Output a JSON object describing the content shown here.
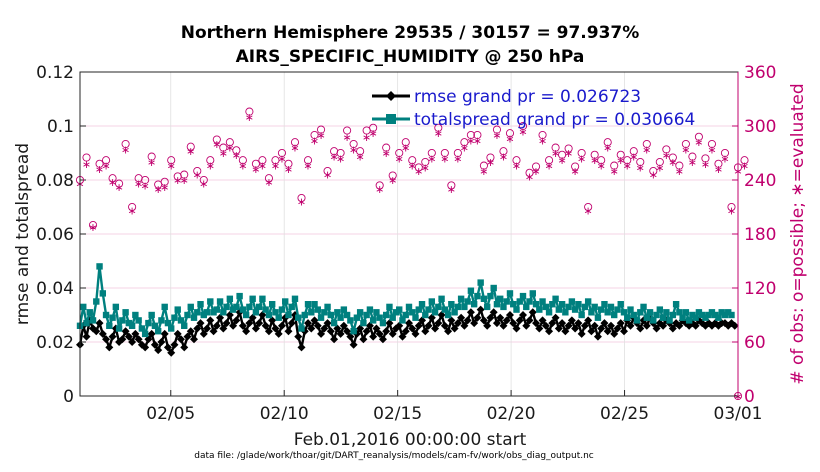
{
  "chart_data": {
    "type": "line",
    "title_line1": "Northern Hemisphere 29535 / 30157 = 97.937%",
    "title_line2": "AIRS_SPECIFIC_HUMIDITY @ 250 hPa",
    "ylabel": "rmse and totalspread",
    "y2label": "# of obs: o=possible; ∗=evaluated",
    "xlabel": "Feb.01,2016 00:00:00 start",
    "footnote": "data file: /glade/work/thoar/git/DART_reanalysis/models/cam-fv/work/obs_diag_output.nc",
    "ylim": [
      0,
      0.12
    ],
    "y2lim": [
      0,
      360
    ],
    "xlim": [
      1,
      30
    ],
    "yticks": [
      "0",
      "0.02",
      "0.04",
      "0.06",
      "0.08",
      "0.1",
      "0.12"
    ],
    "y2ticks": [
      "0",
      "60",
      "120",
      "180",
      "240",
      "300",
      "360"
    ],
    "xticks": [
      {
        "x": 5,
        "label": "02/05"
      },
      {
        "x": 10,
        "label": "02/10"
      },
      {
        "x": 15,
        "label": "02/15"
      },
      {
        "x": 20,
        "label": "02/20"
      },
      {
        "x": 25,
        "label": "02/25"
      },
      {
        "x": 30,
        "label": "03/01"
      }
    ],
    "grid": true,
    "legend_position": "top-right",
    "colors": {
      "rmse": "#000000",
      "spread": "#00807f",
      "obs": "#c0006e"
    },
    "series": [
      {
        "name": "rmse grand pr = 0.026723",
        "values": [
          0.019,
          0.026,
          0.022,
          0.028,
          0.025,
          0.024,
          0.027,
          0.023,
          0.021,
          0.018,
          0.022,
          0.025,
          0.02,
          0.021,
          0.024,
          0.022,
          0.02,
          0.023,
          0.021,
          0.019,
          0.018,
          0.021,
          0.023,
          0.019,
          0.017,
          0.02,
          0.023,
          0.018,
          0.016,
          0.019,
          0.023,
          0.021,
          0.018,
          0.022,
          0.024,
          0.021,
          0.025,
          0.027,
          0.023,
          0.025,
          0.028,
          0.024,
          0.026,
          0.029,
          0.025,
          0.027,
          0.03,
          0.026,
          0.028,
          0.031,
          0.026,
          0.024,
          0.027,
          0.029,
          0.025,
          0.027,
          0.03,
          0.026,
          0.024,
          0.028,
          0.025,
          0.023,
          0.026,
          0.029,
          0.024,
          0.027,
          0.03,
          0.022,
          0.018,
          0.024,
          0.027,
          0.025,
          0.028,
          0.026,
          0.023,
          0.025,
          0.027,
          0.024,
          0.021,
          0.025,
          0.023,
          0.026,
          0.024,
          0.022,
          0.019,
          0.023,
          0.025,
          0.021,
          0.024,
          0.026,
          0.022,
          0.025,
          0.023,
          0.021,
          0.024,
          0.027,
          0.023,
          0.025,
          0.026,
          0.022,
          0.024,
          0.027,
          0.025,
          0.023,
          0.026,
          0.028,
          0.024,
          0.026,
          0.029,
          0.025,
          0.027,
          0.03,
          0.026,
          0.024,
          0.028,
          0.025,
          0.027,
          0.029,
          0.026,
          0.028,
          0.031,
          0.027,
          0.029,
          0.032,
          0.028,
          0.026,
          0.029,
          0.031,
          0.027,
          0.029,
          0.026,
          0.028,
          0.03,
          0.027,
          0.025,
          0.028,
          0.03,
          0.026,
          0.028,
          0.031,
          0.027,
          0.025,
          0.028,
          0.026,
          0.024,
          0.027,
          0.029,
          0.025,
          0.027,
          0.024,
          0.026,
          0.028,
          0.025,
          0.027,
          0.023,
          0.026,
          0.028,
          0.024,
          0.026,
          0.022,
          0.025,
          0.027,
          0.024,
          0.026,
          0.023,
          0.025,
          0.027,
          0.024,
          0.028,
          0.026,
          0.029,
          0.027,
          0.025,
          0.028,
          0.026,
          0.029,
          0.027,
          0.025,
          0.027,
          0.026,
          0.028,
          0.027,
          0.025,
          0.027,
          0.026,
          0.028,
          0.027,
          0.026,
          0.027,
          0.026,
          0.028,
          0.027,
          0.026,
          0.027,
          0.026,
          0.027,
          0.026,
          0.027,
          0.027,
          0.026,
          0.027,
          0.026
        ]
      },
      {
        "name": "totalspread grand pr = 0.030664",
        "values": [
          0.026,
          0.033,
          0.027,
          0.031,
          0.028,
          0.035,
          0.048,
          0.038,
          0.03,
          0.026,
          0.029,
          0.033,
          0.025,
          0.028,
          0.031,
          0.027,
          0.026,
          0.03,
          0.028,
          0.025,
          0.023,
          0.027,
          0.03,
          0.026,
          0.024,
          0.028,
          0.033,
          0.027,
          0.025,
          0.029,
          0.032,
          0.028,
          0.026,
          0.03,
          0.033,
          0.029,
          0.031,
          0.034,
          0.03,
          0.031,
          0.035,
          0.031,
          0.032,
          0.035,
          0.031,
          0.033,
          0.036,
          0.032,
          0.033,
          0.037,
          0.032,
          0.03,
          0.033,
          0.036,
          0.031,
          0.033,
          0.036,
          0.032,
          0.03,
          0.034,
          0.031,
          0.029,
          0.032,
          0.035,
          0.03,
          0.033,
          0.036,
          0.029,
          0.025,
          0.03,
          0.034,
          0.031,
          0.034,
          0.032,
          0.029,
          0.031,
          0.033,
          0.03,
          0.027,
          0.031,
          0.029,
          0.032,
          0.03,
          0.028,
          0.024,
          0.029,
          0.031,
          0.027,
          0.03,
          0.032,
          0.028,
          0.031,
          0.029,
          0.027,
          0.03,
          0.033,
          0.029,
          0.031,
          0.032,
          0.028,
          0.03,
          0.033,
          0.031,
          0.029,
          0.032,
          0.034,
          0.03,
          0.032,
          0.035,
          0.031,
          0.033,
          0.036,
          0.032,
          0.03,
          0.034,
          0.031,
          0.033,
          0.036,
          0.033,
          0.035,
          0.039,
          0.034,
          0.037,
          0.042,
          0.036,
          0.033,
          0.037,
          0.04,
          0.034,
          0.036,
          0.033,
          0.035,
          0.038,
          0.034,
          0.032,
          0.035,
          0.037,
          0.033,
          0.035,
          0.038,
          0.034,
          0.032,
          0.035,
          0.033,
          0.031,
          0.034,
          0.036,
          0.032,
          0.034,
          0.031,
          0.033,
          0.035,
          0.032,
          0.034,
          0.03,
          0.033,
          0.035,
          0.031,
          0.033,
          0.029,
          0.032,
          0.034,
          0.031,
          0.033,
          0.03,
          0.032,
          0.034,
          0.031,
          0.029,
          0.032,
          0.03,
          0.028,
          0.031,
          0.033,
          0.029,
          0.031,
          0.028,
          0.03,
          0.032,
          0.029,
          0.031,
          0.028,
          0.03,
          0.034,
          0.031,
          0.029,
          0.031,
          0.028,
          0.03,
          0.029,
          0.031,
          0.03,
          0.029,
          0.03,
          0.031,
          0.03,
          0.029,
          0.031,
          0.03,
          0.031,
          0.03
        ]
      },
      {
        "name": "possible",
        "axis": "right",
        "values": [
          240,
          238,
          265,
          262,
          190,
          262,
          258,
          236,
          262,
          258,
          242,
          230,
          236,
          260,
          280,
          212,
          210,
          200,
          242,
          248,
          240,
          265,
          266,
          210,
          235,
          240,
          238,
          190,
          262,
          258,
          244,
          248,
          246,
          272,
          277,
          236,
          250,
          270,
          240,
          280,
          262,
          276,
          285,
          244,
          276,
          262,
          282,
          262,
          273,
          245,
          262,
          255,
          316,
          308,
          258,
          262,
          262,
          248,
          242,
          300,
          262,
          256,
          270,
          290,
          258,
          276,
          282,
          290,
          220,
          262,
          262,
          260,
          290,
          278,
          296,
          248,
          250,
          208,
          272,
          262,
          270,
          287,
          295,
          262,
          280,
          260,
          272,
          258,
          295,
          294,
          298,
          285,
          234,
          242,
          276,
          238,
          245,
          248,
          270,
          247,
          282,
          274,
          262,
          264,
          254,
          292,
          260,
          290,
          270,
          265,
          298,
          250,
          270,
          272,
          234,
          262,
          270,
          256,
          282,
          244,
          290,
          262,
          290,
          272,
          256,
          278,
          265,
          265,
          296,
          248,
          272,
          274,
          292,
          274,
          262,
          243,
          300,
          262,
          248,
          240,
          255,
          262,
          290,
          258,
          262,
          244,
          276,
          260,
          268,
          248,
          275,
          290,
          255,
          248,
          270,
          272,
          210,
          262,
          268,
          280,
          262,
          252,
          282,
          270,
          256,
          264,
          268,
          290,
          262,
          250,
          272,
          287,
          260,
          232,
          280,
          280,
          250,
          238,
          260,
          254,
          274,
          265,
          265,
          248,
          256,
          262,
          280,
          270,
          266,
          275,
          288,
          255,
          264,
          240,
          280,
          265,
          258,
          240,
          270,
          255,
          210,
          250,
          254,
          262,
          262,
          252
        ]
      },
      {
        "name": "evaluated",
        "axis": "right",
        "values": [
          236,
          234,
          258,
          256,
          188,
          255,
          252,
          232,
          256,
          252,
          238,
          226,
          232,
          254,
          274,
          208,
          206,
          196,
          236,
          242,
          234,
          258,
          260,
          206,
          230,
          234,
          232,
          188,
          256,
          252,
          240,
          242,
          240,
          266,
          272,
          232,
          246,
          264,
          236,
          274,
          256,
          270,
          280,
          238,
          270,
          256,
          276,
          256,
          268,
          240,
          256,
          250,
          310,
          300,
          252,
          256,
          256,
          244,
          238,
          294,
          256,
          250,
          264,
          284,
          252,
          270,
          276,
          284,
          216,
          256,
          256,
          254,
          284,
          272,
          290,
          244,
          246,
          204,
          266,
          256,
          264,
          280,
          288,
          256,
          274,
          254,
          266,
          252,
          288,
          288,
          292,
          280,
          230,
          238,
          270,
          234,
          240,
          244,
          264,
          242,
          276,
          268,
          256,
          258,
          250,
          286,
          254,
          284,
          264,
          260,
          292,
          246,
          264,
          266,
          230,
          256,
          264,
          250,
          276,
          240,
          284,
          256,
          284,
          266,
          250,
          272,
          260,
          260,
          290,
          244,
          266,
          268,
          286,
          268,
          256,
          238,
          294,
          256,
          244,
          236,
          250,
          256,
          284,
          252,
          256,
          240,
          270,
          254,
          262,
          244,
          270,
          284,
          250,
          244,
          264,
          266,
          206,
          256,
          262,
          274,
          256,
          248,
          276,
          264,
          250,
          258,
          262,
          284,
          256,
          246,
          266,
          280,
          254,
          228,
          274,
          274,
          246,
          234,
          254,
          250,
          268,
          260,
          260,
          244,
          250,
          256,
          274,
          264,
          260,
          270,
          282,
          250,
          258,
          236,
          274,
          260,
          252,
          236,
          264,
          250,
          206,
          246,
          250,
          256,
          256,
          248
        ]
      }
    ],
    "last_point": {
      "x": 30,
      "possible": 0,
      "evaluated": 0
    }
  }
}
